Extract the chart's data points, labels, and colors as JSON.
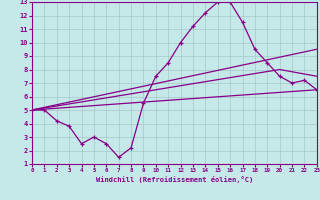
{
  "xlabel": "Windchill (Refroidissement éolien,°C)",
  "xlim": [
    0,
    23
  ],
  "ylim": [
    1,
    13
  ],
  "xticks": [
    0,
    1,
    2,
    3,
    4,
    5,
    6,
    7,
    8,
    9,
    10,
    11,
    12,
    13,
    14,
    15,
    16,
    17,
    18,
    19,
    20,
    21,
    22,
    23
  ],
  "yticks": [
    1,
    2,
    3,
    4,
    5,
    6,
    7,
    8,
    9,
    10,
    11,
    12,
    13
  ],
  "bg_color": "#c5e8e8",
  "line_color": "#880088",
  "grid_color": "#a8c8c8",
  "series_marker": {
    "x": [
      0,
      1,
      2,
      3,
      4,
      5,
      6,
      7,
      8,
      9,
      10,
      11,
      12,
      13,
      14,
      15,
      16,
      17,
      18,
      19,
      20,
      21,
      22,
      23
    ],
    "y": [
      5,
      5,
      4.2,
      3.8,
      2.5,
      3.0,
      2.5,
      1.5,
      2.2,
      5.5,
      7.5,
      8.5,
      10.0,
      11.2,
      12.2,
      13.0,
      13.0,
      11.5,
      9.5,
      8.5,
      7.5,
      7.0,
      7.2,
      6.5
    ]
  },
  "series_smooth": [
    {
      "x": [
        0,
        23
      ],
      "y": [
        5.0,
        9.5
      ]
    },
    {
      "x": [
        0,
        20,
        23
      ],
      "y": [
        5.0,
        8.0,
        7.5
      ]
    },
    {
      "x": [
        0,
        23
      ],
      "y": [
        5.0,
        6.5
      ]
    }
  ]
}
